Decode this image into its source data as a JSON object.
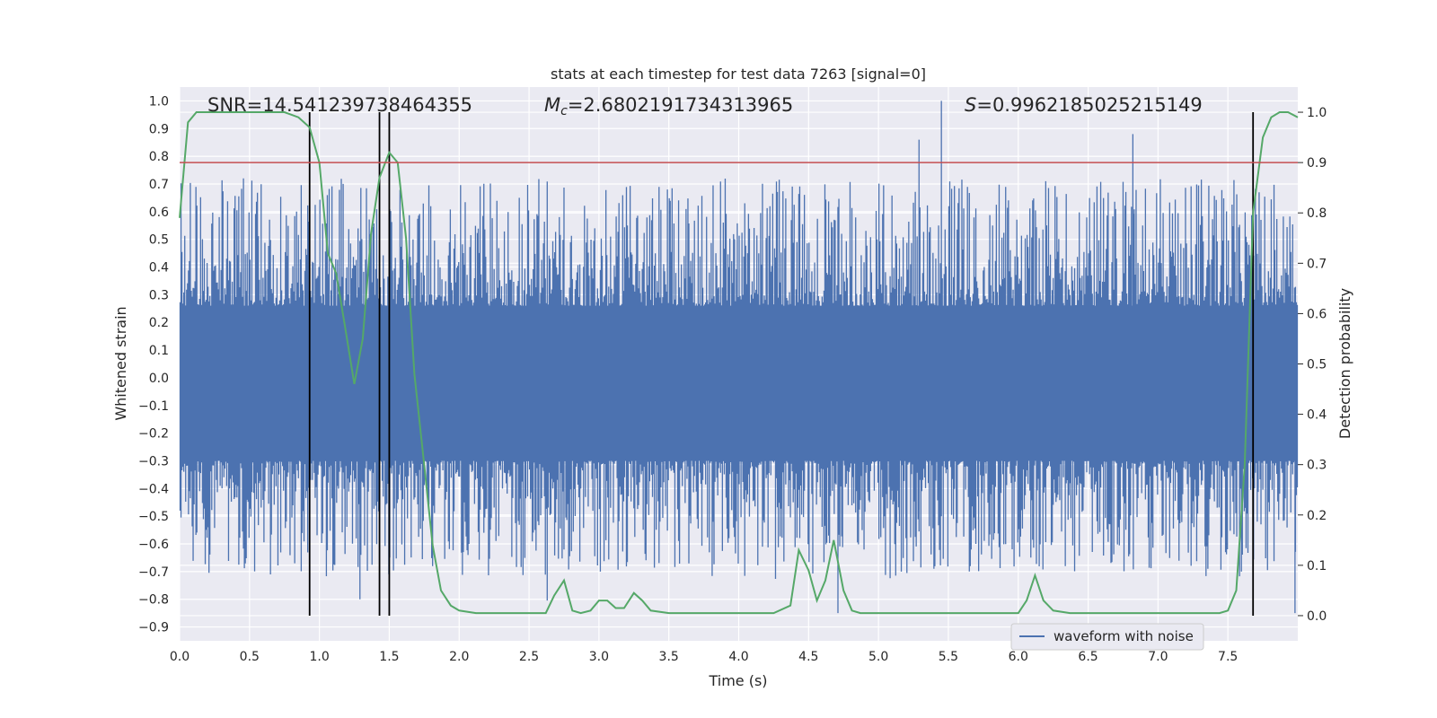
{
  "chart_data": {
    "type": "line",
    "title": "stats at each timestep for test data 7263 [signal=0]",
    "xlabel": "Time (s)",
    "ylabel_left": "Whitened strain",
    "ylabel_right": "Detection probability",
    "xlim": [
      0.0,
      8.0
    ],
    "ylim_left": [
      -0.95,
      1.05
    ],
    "ylim_right": [
      -0.05,
      1.05
    ],
    "x_ticks": [
      "0.0",
      "0.5",
      "1.0",
      "1.5",
      "2.0",
      "2.5",
      "3.0",
      "3.5",
      "4.0",
      "4.5",
      "5.0",
      "5.5",
      "6.0",
      "6.5",
      "7.0",
      "7.5"
    ],
    "y_left_ticks": [
      "-0.9",
      "-0.8",
      "-0.7",
      "-0.6",
      "-0.5",
      "-0.4",
      "-0.3",
      "-0.2",
      "-0.1",
      "0.0",
      "0.1",
      "0.2",
      "0.3",
      "0.4",
      "0.5",
      "0.6",
      "0.7",
      "0.8",
      "0.9",
      "1.0"
    ],
    "y_right_ticks": [
      "0.0",
      "0.1",
      "0.2",
      "0.3",
      "0.4",
      "0.5",
      "0.6",
      "0.7",
      "0.8",
      "0.9",
      "1.0"
    ],
    "annotations": {
      "snr": "SNR=14.541239738464355",
      "mc_symbol": "M",
      "mc_sub": "c",
      "mc_value": "=2.6802191734313965",
      "s_symbol": "S",
      "s_value": "=0.9962185025215149"
    },
    "legend": [
      "waveform with noise"
    ],
    "threshold": 0.9,
    "vertical_lines": [
      0.93,
      1.43,
      1.5,
      7.68
    ],
    "waveform": {
      "name": "waveform with noise",
      "color": "#4c72b0",
      "core_band": [
        -0.3,
        0.26
      ],
      "peaks": [
        {
          "t": 5.45,
          "v": 1.0
        },
        {
          "t": 5.29,
          "v": 0.86
        },
        {
          "t": 6.82,
          "v": 0.88
        },
        {
          "t": 1.29,
          "v": -0.8
        },
        {
          "t": 4.71,
          "v": -0.85
        },
        {
          "t": 7.98,
          "v": -0.85
        }
      ]
    },
    "probability": {
      "name": "detection probability",
      "color": "#55a868",
      "x": [
        0.0,
        0.06,
        0.12,
        0.2,
        0.4,
        0.6,
        0.75,
        0.85,
        0.93,
        1.0,
        1.06,
        1.12,
        1.18,
        1.25,
        1.31,
        1.37,
        1.43,
        1.5,
        1.56,
        1.62,
        1.68,
        1.75,
        1.81,
        1.87,
        1.94,
        2.0,
        2.12,
        2.25,
        2.38,
        2.5,
        2.62,
        2.68,
        2.75,
        2.81,
        2.87,
        2.94,
        3.0,
        3.06,
        3.12,
        3.18,
        3.25,
        3.31,
        3.37,
        3.5,
        3.75,
        4.0,
        4.25,
        4.37,
        4.43,
        4.5,
        4.56,
        4.62,
        4.68,
        4.75,
        4.81,
        4.87,
        5.0,
        5.25,
        5.5,
        5.75,
        6.0,
        6.06,
        6.12,
        6.18,
        6.25,
        6.37,
        6.5,
        6.75,
        7.0,
        7.25,
        7.44,
        7.5,
        7.56,
        7.62,
        7.68,
        7.75,
        7.81,
        7.87,
        7.93,
        8.0
      ],
      "y": [
        0.79,
        0.98,
        1.0,
        1.0,
        1.0,
        1.0,
        1.0,
        0.99,
        0.97,
        0.9,
        0.72,
        0.68,
        0.58,
        0.46,
        0.55,
        0.76,
        0.87,
        0.92,
        0.9,
        0.75,
        0.48,
        0.3,
        0.14,
        0.05,
        0.02,
        0.01,
        0.005,
        0.005,
        0.005,
        0.005,
        0.005,
        0.04,
        0.07,
        0.01,
        0.005,
        0.01,
        0.03,
        0.03,
        0.015,
        0.015,
        0.045,
        0.03,
        0.01,
        0.005,
        0.005,
        0.005,
        0.005,
        0.02,
        0.13,
        0.09,
        0.03,
        0.07,
        0.15,
        0.05,
        0.01,
        0.005,
        0.005,
        0.005,
        0.005,
        0.005,
        0.005,
        0.03,
        0.08,
        0.03,
        0.01,
        0.005,
        0.005,
        0.005,
        0.005,
        0.005,
        0.005,
        0.01,
        0.05,
        0.3,
        0.8,
        0.95,
        0.99,
        1.0,
        1.0,
        0.99
      ]
    }
  }
}
